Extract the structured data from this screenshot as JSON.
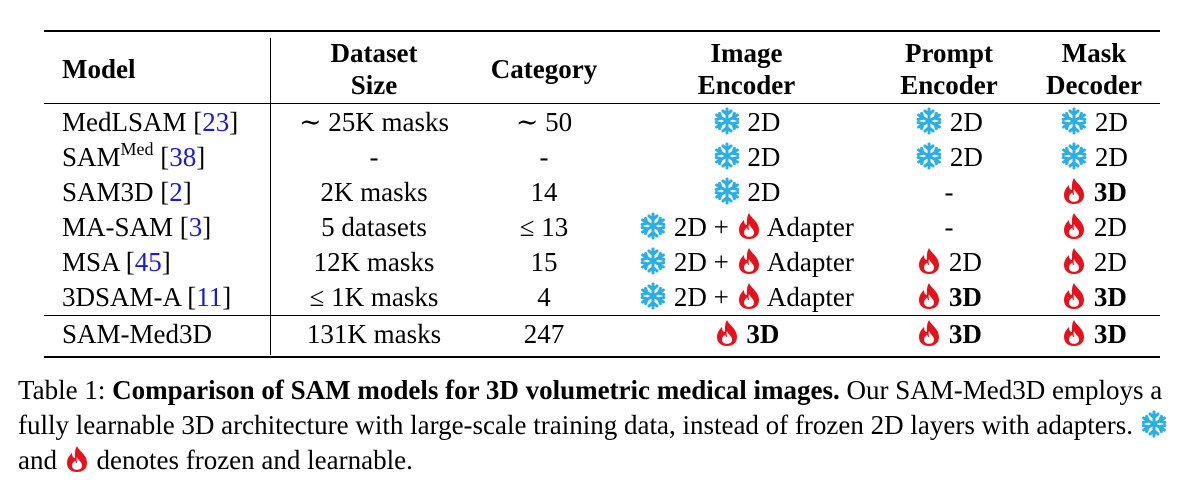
{
  "colors": {
    "frozen": "#29aee6",
    "learnable": "#e8101a",
    "citation": "#1a1ad6"
  },
  "icons": {
    "frozen": "snowflake-icon",
    "learnable": "flame-icon"
  },
  "header": {
    "model": "Model",
    "dataset_size_line1": "Dataset",
    "dataset_size_line2": "Size",
    "category": "Category",
    "image_encoder_line1": "Image",
    "image_encoder_line2": "Encoder",
    "prompt_encoder_line1": "Prompt",
    "prompt_encoder_line2": "Encoder",
    "mask_decoder_line1": "Mask",
    "mask_decoder_line2": "Decoder"
  },
  "rows": [
    {
      "model": "MedLSAM",
      "model_sup": "",
      "cite": "23",
      "dataset_size": "∼ 25K masks",
      "category": "∼ 50",
      "image_encoder": {
        "icon": "frozen",
        "text": "2D",
        "adapter": "",
        "bold": false
      },
      "prompt_encoder": {
        "icon": "frozen",
        "text": "2D",
        "bold": false
      },
      "mask_decoder": {
        "icon": "frozen",
        "text": "2D",
        "bold": false
      }
    },
    {
      "model": "SAM",
      "model_sup": "Med",
      "cite": "38",
      "dataset_size": "-",
      "category": "-",
      "image_encoder": {
        "icon": "frozen",
        "text": "2D",
        "adapter": "",
        "bold": false
      },
      "prompt_encoder": {
        "icon": "frozen",
        "text": "2D",
        "bold": false
      },
      "mask_decoder": {
        "icon": "frozen",
        "text": "2D",
        "bold": false
      }
    },
    {
      "model": "SAM3D",
      "model_sup": "",
      "cite": "2",
      "dataset_size": "2K masks",
      "category": "14",
      "image_encoder": {
        "icon": "frozen",
        "text": "2D",
        "adapter": "",
        "bold": false
      },
      "prompt_encoder": {
        "icon": "",
        "text": "-",
        "bold": false
      },
      "mask_decoder": {
        "icon": "learnable",
        "text": "3D",
        "bold": true
      }
    },
    {
      "model": "MA-SAM",
      "model_sup": "",
      "cite": "3",
      "dataset_size": "5 datasets",
      "category": "≤ 13",
      "image_encoder": {
        "icon": "frozen",
        "text": "2D +",
        "adapter": "Adapter",
        "bold": false
      },
      "prompt_encoder": {
        "icon": "",
        "text": "-",
        "bold": false
      },
      "mask_decoder": {
        "icon": "learnable",
        "text": "2D",
        "bold": false
      }
    },
    {
      "model": "MSA",
      "model_sup": "",
      "cite": "45",
      "dataset_size": "12K masks",
      "category": "15",
      "image_encoder": {
        "icon": "frozen",
        "text": "2D +",
        "adapter": "Adapter",
        "bold": false
      },
      "prompt_encoder": {
        "icon": "learnable",
        "text": "2D",
        "bold": false
      },
      "mask_decoder": {
        "icon": "learnable",
        "text": "2D",
        "bold": false
      }
    },
    {
      "model": "3DSAM-A",
      "model_sup": "",
      "cite": "11",
      "dataset_size": "≤ 1K masks",
      "category": "4",
      "image_encoder": {
        "icon": "frozen",
        "text": "2D +",
        "adapter": "Adapter",
        "bold": false
      },
      "prompt_encoder": {
        "icon": "learnable",
        "text": "3D",
        "bold": true
      },
      "mask_decoder": {
        "icon": "learnable",
        "text": "3D",
        "bold": true
      }
    },
    {
      "model": "SAM-Med3D",
      "model_sup": "",
      "cite": "",
      "dataset_size": "131K masks",
      "category": "247",
      "image_encoder": {
        "icon": "learnable",
        "text": "3D",
        "adapter": "",
        "bold": true
      },
      "prompt_encoder": {
        "icon": "learnable",
        "text": "3D",
        "bold": true
      },
      "mask_decoder": {
        "icon": "learnable",
        "text": "3D",
        "bold": true
      }
    }
  ],
  "caption": {
    "label": "Table 1:",
    "title": "Comparison of SAM models for 3D volumetric medical images.",
    "body": "Our SAM-Med3D employs a fully learnable 3D architecture with large-scale training data, instead of frozen 2D layers with adapters.",
    "and_text": "and",
    "denotes_text": "denotes frozen and learnable."
  }
}
